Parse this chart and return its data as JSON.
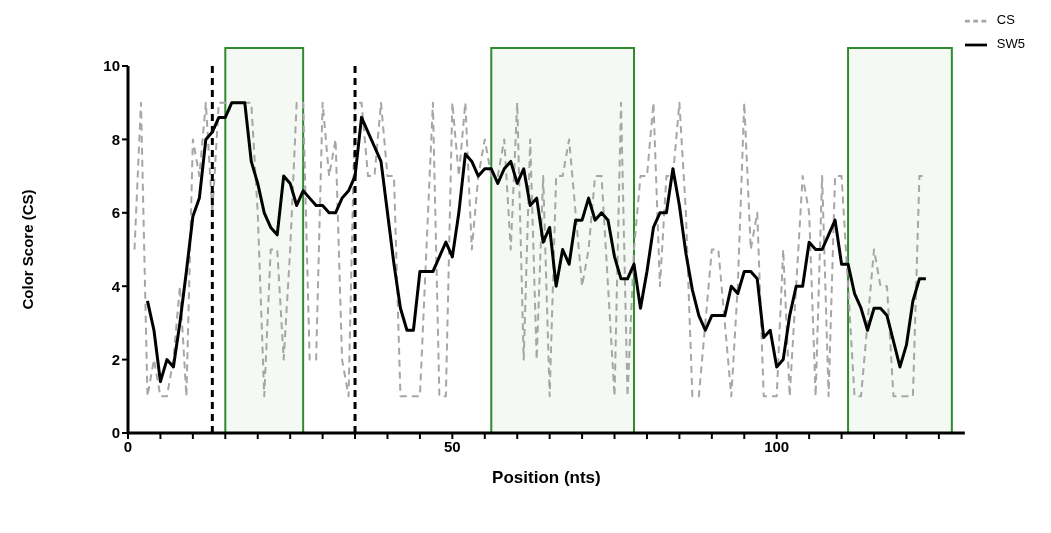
{
  "chart_data": {
    "type": "line",
    "xlabel": "Position (nts)",
    "ylabel": "Color Score (CS)",
    "xlim": [
      0,
      129
    ],
    "xticks": [
      0,
      {
        "value": 5,
        "label": null
      },
      {
        "value": 10,
        "label": null
      },
      {
        "value": 15,
        "label": null
      },
      {
        "value": 20,
        "label": null
      },
      {
        "value": 25,
        "label": null
      },
      {
        "value": 30,
        "label": null
      },
      {
        "value": 35,
        "label": null
      },
      {
        "value": 40,
        "label": null
      },
      {
        "value": 45,
        "label": null
      },
      50,
      {
        "value": 55,
        "label": null
      },
      {
        "value": 60,
        "label": null
      },
      {
        "value": 65,
        "label": null
      },
      {
        "value": 70,
        "label": null
      },
      {
        "value": 75,
        "label": null
      },
      {
        "value": 80,
        "label": null
      },
      {
        "value": 85,
        "label": null
      },
      {
        "value": 90,
        "label": null
      },
      {
        "value": 95,
        "label": null
      },
      100,
      {
        "value": 105,
        "label": null
      },
      {
        "value": 110,
        "label": null
      },
      {
        "value": 115,
        "label": null
      },
      {
        "value": 120,
        "label": null
      },
      {
        "value": 125,
        "label": null
      }
    ],
    "ylim": [
      0,
      10
    ],
    "yticks": [
      0,
      2,
      4,
      6,
      8,
      10
    ],
    "grid": false,
    "legend": "top right",
    "marker": "none",
    "ref_lines": [
      {
        "axis": "x",
        "value": 13,
        "color": "#000000",
        "line_style": "dashed"
      },
      {
        "axis": "x",
        "value": 35,
        "color": "#000000",
        "line_style": "dashed"
      }
    ],
    "bands": [
      {
        "axis": "x",
        "from": 15,
        "to": 27,
        "color": "#2e8b2e"
      },
      {
        "axis": "x",
        "from": 56,
        "to": 78,
        "color": "#2e8b2e"
      },
      {
        "axis": "x",
        "from": 111,
        "to": 127,
        "color": "#2e8b2e"
      }
    ],
    "series": [
      {
        "name": "CS",
        "color": "#a6a6a6",
        "line_style": "dashed",
        "x": [
          1,
          2,
          3,
          4,
          5,
          6,
          7,
          8,
          9,
          10,
          11,
          12,
          13,
          14,
          15,
          16,
          17,
          18,
          19,
          20,
          21,
          22,
          23,
          24,
          25,
          26,
          27,
          28,
          29,
          30,
          31,
          32,
          33,
          34,
          35,
          36,
          37,
          38,
          39,
          40,
          41,
          42,
          43,
          44,
          45,
          46,
          47,
          48,
          49,
          50,
          51,
          52,
          53,
          54,
          55,
          56,
          57,
          58,
          59,
          60,
          61,
          62,
          63,
          64,
          65,
          66,
          67,
          68,
          69,
          70,
          71,
          72,
          73,
          74,
          75,
          76,
          77,
          78,
          79,
          80,
          81,
          82,
          83,
          84,
          85,
          86,
          87,
          88,
          89,
          90,
          91,
          92,
          93,
          94,
          95,
          96,
          97,
          98,
          99,
          100,
          101,
          102,
          103,
          104,
          105,
          106,
          107,
          108,
          109,
          110,
          111,
          112,
          113,
          114,
          115,
          116,
          117,
          118,
          119,
          120,
          121,
          122,
          123
        ],
        "values": [
          5,
          9,
          1,
          2,
          1,
          1,
          2,
          4,
          1,
          8,
          7,
          9,
          6,
          9,
          9,
          9,
          9,
          9,
          9,
          6,
          1,
          5,
          5,
          2,
          5,
          9,
          9,
          2,
          2,
          9,
          7,
          8,
          2,
          1,
          9,
          9,
          7,
          7,
          9,
          7,
          7,
          1,
          1,
          1,
          1,
          5,
          9,
          1,
          1,
          9,
          7,
          9,
          5,
          7,
          8,
          7,
          7,
          8,
          5,
          9,
          2,
          8,
          2,
          7,
          1,
          7,
          7,
          8,
          6,
          4,
          5,
          7,
          7,
          4,
          1,
          9,
          1,
          5,
          7,
          7,
          9,
          4,
          7,
          7,
          9,
          6,
          1,
          1,
          3,
          5,
          5,
          3,
          1,
          4,
          9,
          5,
          6,
          1,
          1,
          1,
          5,
          1,
          4,
          7,
          6,
          1,
          7,
          1,
          7,
          7,
          4,
          1,
          1,
          3,
          5,
          4,
          4,
          1,
          1,
          1,
          1,
          7,
          7
        ]
      },
      {
        "name": "SW5",
        "color": "#000000",
        "line_style": "solid",
        "x": [
          3,
          4,
          5,
          6,
          7,
          8,
          9,
          10,
          11,
          12,
          13,
          14,
          15,
          16,
          17,
          18,
          19,
          20,
          21,
          22,
          23,
          24,
          25,
          26,
          27,
          28,
          29,
          30,
          31,
          32,
          33,
          34,
          35,
          36,
          37,
          38,
          39,
          40,
          41,
          42,
          43,
          44,
          45,
          46,
          47,
          48,
          49,
          50,
          51,
          52,
          53,
          54,
          55,
          56,
          57,
          58,
          59,
          60,
          61,
          62,
          63,
          64,
          65,
          66,
          67,
          68,
          69,
          70,
          71,
          72,
          73,
          74,
          75,
          76,
          77,
          78,
          79,
          80,
          81,
          82,
          83,
          84,
          85,
          86,
          87,
          88,
          89,
          90,
          91,
          92,
          93,
          94,
          95,
          96,
          97,
          98,
          99,
          100,
          101,
          102,
          103,
          104,
          105,
          106,
          107,
          108,
          109,
          110,
          111,
          112,
          113,
          114,
          115,
          116,
          117,
          118,
          119,
          120,
          121,
          122,
          123
        ],
        "values": [
          3.6,
          2.8,
          1.4,
          2.0,
          1.8,
          3.0,
          4.4,
          5.9,
          6.4,
          8.0,
          8.2,
          8.6,
          8.6,
          9.0,
          9.0,
          9.0,
          7.4,
          6.8,
          6.0,
          5.6,
          5.4,
          7.0,
          6.8,
          6.2,
          6.6,
          6.4,
          6.2,
          6.2,
          6.0,
          6.0,
          6.4,
          6.6,
          7.0,
          8.6,
          8.2,
          7.8,
          7.4,
          6.0,
          4.6,
          3.4,
          2.8,
          2.8,
          4.4,
          4.4,
          4.4,
          4.8,
          5.2,
          4.8,
          6.0,
          7.6,
          7.4,
          7.0,
          7.2,
          7.2,
          6.8,
          7.2,
          7.4,
          6.8,
          7.2,
          6.2,
          6.4,
          5.2,
          5.6,
          4.0,
          5.0,
          4.6,
          5.8,
          5.8,
          6.4,
          5.8,
          6.0,
          5.8,
          4.8,
          4.2,
          4.2,
          4.6,
          3.4,
          4.4,
          5.6,
          6.0,
          6.0,
          7.2,
          6.2,
          4.9,
          3.9,
          3.2,
          2.8,
          3.2,
          3.2,
          3.2,
          4.0,
          3.8,
          4.4,
          4.4,
          4.2,
          2.6,
          2.8,
          1.8,
          2.0,
          3.2,
          4.0,
          4.0,
          5.2,
          5.0,
          5.0,
          5.4,
          5.8,
          4.6,
          4.6,
          3.8,
          3.4,
          2.8,
          3.4,
          3.4,
          3.2,
          2.5,
          1.8,
          2.4,
          3.6,
          4.2,
          4.2
        ]
      }
    ]
  }
}
